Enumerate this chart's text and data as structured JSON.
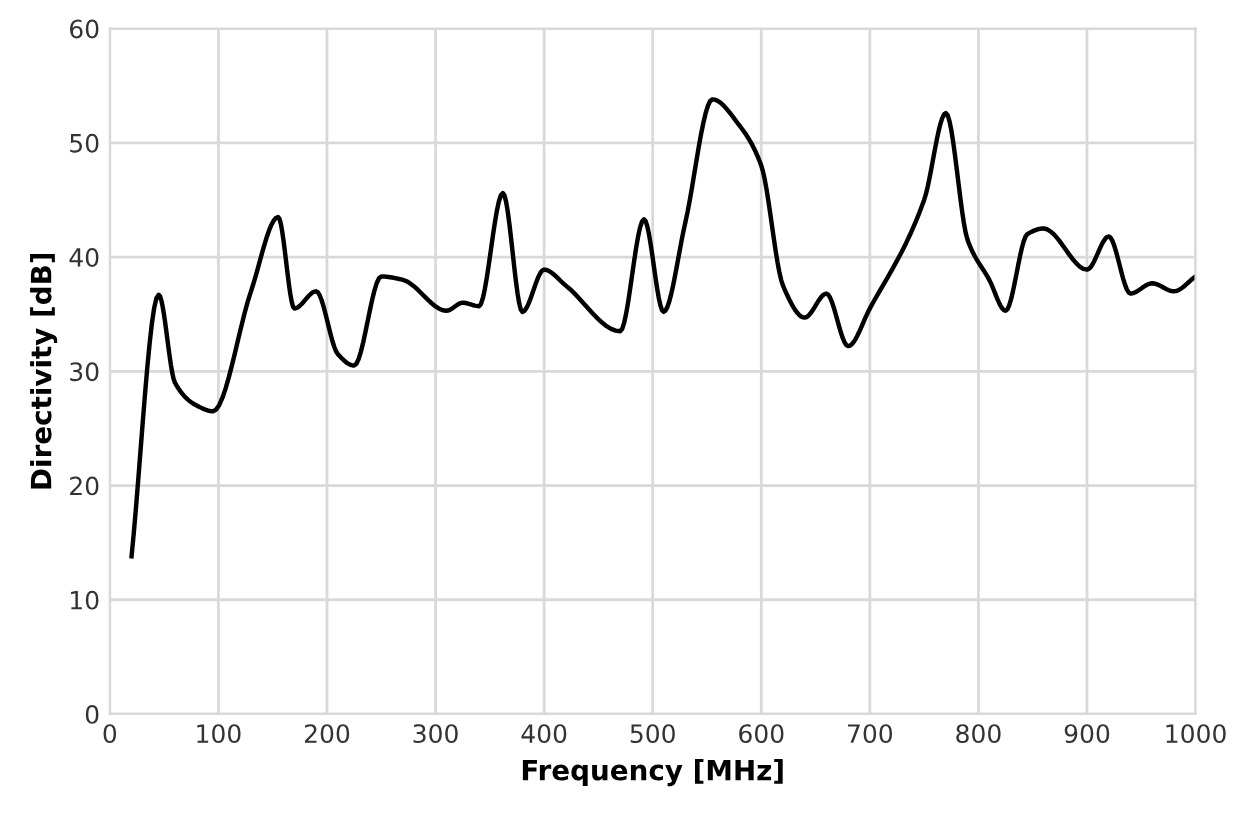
{
  "chart_data": {
    "type": "line",
    "xlabel": "Frequency [MHz]",
    "ylabel": "Directivity [dB]",
    "series": [
      {
        "color": "#000000",
        "x": [
          20,
          45,
          60,
          80,
          95,
          130,
          155,
          170,
          190,
          210,
          225,
          250,
          270,
          310,
          325,
          340,
          362,
          380,
          400,
          420,
          470,
          492,
          510,
          530,
          555,
          580,
          600,
          620,
          640,
          660,
          680,
          700,
          750,
          770,
          790,
          810,
          825,
          845,
          860,
          900,
          920,
          940,
          960,
          980,
          1000
        ],
        "values": [
          13.8,
          36.7,
          29,
          27,
          26.5,
          37,
          43.5,
          35.5,
          37,
          31.5,
          30.5,
          38.3,
          38,
          35.3,
          36,
          35.7,
          45.6,
          35.2,
          38.9,
          37.5,
          33.5,
          43.3,
          35.2,
          43,
          53.8,
          51.5,
          48,
          37.5,
          34.7,
          36.8,
          32.2,
          35.5,
          45,
          52.6,
          41.5,
          38,
          35.3,
          42,
          42.5,
          38.9,
          41.8,
          36.8,
          37.7,
          37,
          38.3
        ]
      }
    ],
    "xlim": [
      0,
      1000
    ],
    "xticks": [
      0,
      100,
      200,
      300,
      400,
      500,
      600,
      700,
      800,
      900,
      1000
    ],
    "ylim": [
      0,
      60
    ],
    "yticks": [
      0,
      10,
      20,
      30,
      40,
      50,
      60
    ],
    "grid": true,
    "line_style": "solid",
    "marker": "none"
  }
}
